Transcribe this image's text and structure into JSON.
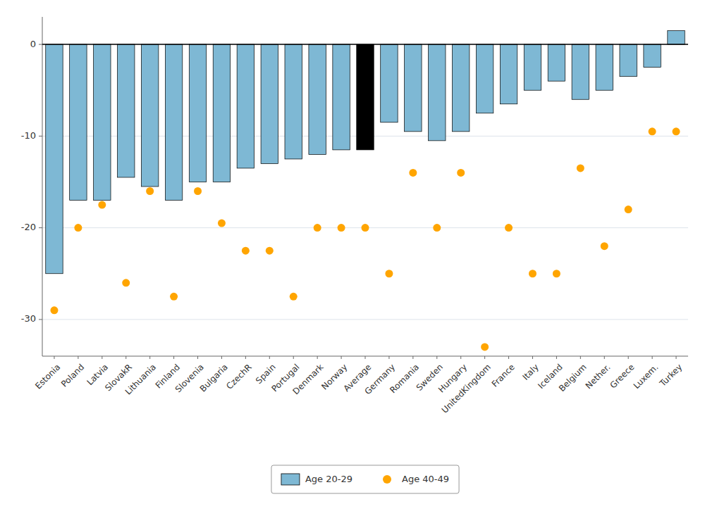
{
  "chart_data": {
    "type": "bar",
    "categories": [
      "Estonia",
      "Poland",
      "Latvia",
      "SlovakR",
      "Lithuania",
      "Finland",
      "Slovenia",
      "Bulgaria",
      "CzechR",
      "Spain",
      "Portugal",
      "Denmark",
      "Norway",
      "Average",
      "Germany",
      "Romania",
      "Sweden",
      "Hungary",
      "UnitedKingdom",
      "France",
      "Italy",
      "Iceland",
      "Belgium",
      "Nether.",
      "Greece",
      "Luxem.",
      "Turkey"
    ],
    "series": [
      {
        "name": "Age 20-29",
        "type": "bar",
        "colors": [
          "#7EB8D4",
          "#7EB8D4",
          "#7EB8D4",
          "#7EB8D4",
          "#7EB8D4",
          "#7EB8D4",
          "#7EB8D4",
          "#7EB8D4",
          "#7EB8D4",
          "#7EB8D4",
          "#7EB8D4",
          "#7EB8D4",
          "#7EB8D4",
          "#000000",
          "#7EB8D4",
          "#7EB8D4",
          "#7EB8D4",
          "#7EB8D4",
          "#7EB8D4",
          "#7EB8D4",
          "#7EB8D4",
          "#7EB8D4",
          "#7EB8D4",
          "#7EB8D4",
          "#7EB8D4",
          "#7EB8D4",
          "#7EB8D4"
        ],
        "values": [
          -25.0,
          -17.0,
          -17.0,
          -14.5,
          -15.5,
          -17.0,
          -15.0,
          -15.0,
          -13.5,
          -13.0,
          -12.5,
          -12.0,
          -11.5,
          -11.5,
          -8.5,
          -9.5,
          -10.5,
          -9.5,
          -7.5,
          -6.5,
          -5.0,
          -4.0,
          -6.0,
          -5.0,
          -3.5,
          -2.5,
          1.5
        ]
      },
      {
        "name": "Age 40-49",
        "type": "scatter",
        "color": "#FFA500",
        "values": [
          -29.0,
          -20.0,
          -17.5,
          -26.0,
          -16.0,
          -27.5,
          -16.0,
          -19.5,
          -22.5,
          -22.5,
          -27.5,
          -20.0,
          -20.0,
          -20.0,
          -25.0,
          -14.0,
          -20.0,
          -14.0,
          -33.0,
          -20.0,
          -25.0,
          -25.0,
          -13.5,
          -22.0,
          -18.0,
          -9.5,
          -9.5
        ]
      }
    ],
    "ylim": [
      -34,
      3
    ],
    "yticks": [
      0,
      -10,
      -20,
      -30
    ],
    "grid": true,
    "legend": "bottom"
  }
}
